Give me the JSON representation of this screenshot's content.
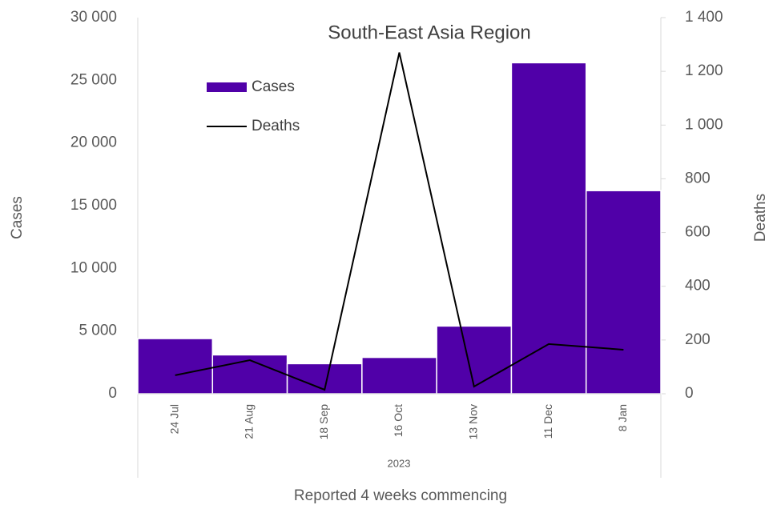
{
  "chart_data": {
    "type": "bar",
    "title": "South-East Asia Region",
    "x_label": "Reported 4 weeks commencing",
    "x_group_label": "2023",
    "y_label": "Cases",
    "y2_label": "Deaths",
    "categories": [
      "24 Jul",
      "21 Aug",
      "18 Sep",
      "16 Oct",
      "13 Nov",
      "11 Dec",
      "8 Jan"
    ],
    "series": [
      {
        "name": "Cases",
        "type": "bar",
        "color": "#5000a8",
        "values": [
          4400,
          3100,
          2400,
          2900,
          5400,
          26400,
          16200
        ]
      },
      {
        "name": "Deaths",
        "type": "line",
        "axis": "y2",
        "color": "#000000",
        "values": [
          69,
          125,
          15,
          1270,
          27,
          185,
          164
        ]
      }
    ],
    "ylim": [
      0,
      30000
    ],
    "yticks": [
      0,
      {
        "value": 5000,
        "label": "5 000"
      },
      {
        "value": 10000,
        "label": "10 000"
      },
      {
        "value": 15000,
        "label": "15 000"
      },
      {
        "value": 20000,
        "label": "20 000"
      },
      {
        "value": 25000,
        "label": "25 000"
      },
      {
        "value": 30000,
        "label": "30 000"
      }
    ],
    "y2lim": [
      0,
      1400
    ],
    "y2ticks": [
      0,
      200,
      400,
      600,
      800,
      {
        "value": 1000,
        "label": "1 000"
      },
      {
        "value": 1200,
        "label": "1 200"
      },
      {
        "value": 1400,
        "label": "1 400"
      }
    ],
    "legend": "upper-left"
  }
}
